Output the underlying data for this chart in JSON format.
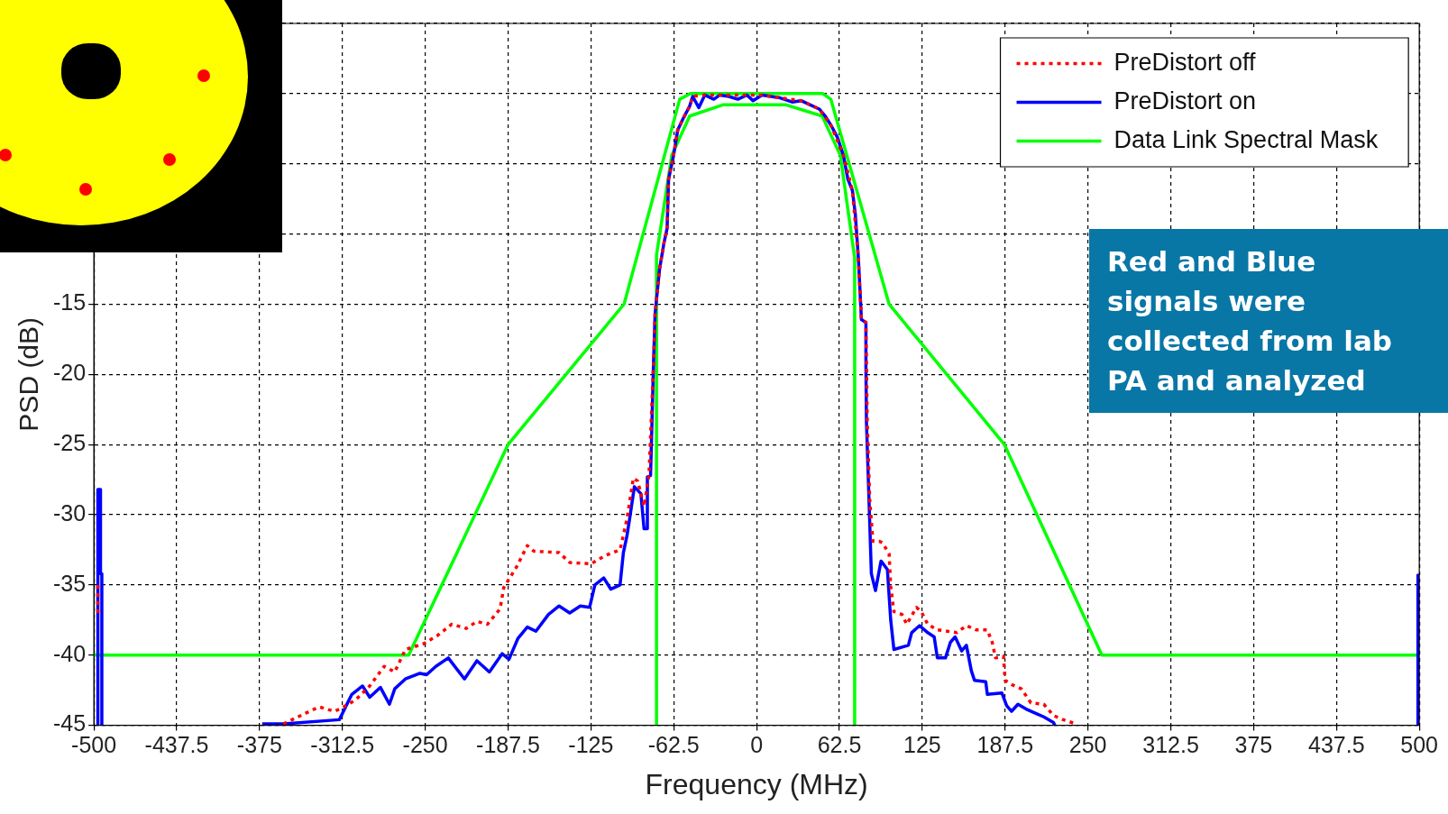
{
  "chart_data": {
    "type": "line",
    "xlabel": "Frequency (MHz)",
    "ylabel": "PSD (dB)",
    "xlim": [
      -500,
      500
    ],
    "xticks": [
      -500,
      -437.5,
      -375,
      -312.5,
      -250,
      -187.5,
      -125,
      -62.5,
      0,
      62.5,
      125,
      187.5,
      250,
      312.5,
      375,
      437.5,
      500
    ],
    "ylim": [
      -45,
      5
    ],
    "yticks": [
      -45,
      -40,
      -35,
      -30,
      -25,
      -20,
      -15,
      {
        "value": -10,
        "label": null
      },
      {
        "value": -5,
        "label": null
      },
      {
        "value": 0,
        "label": null
      },
      {
        "value": 5,
        "label": null
      }
    ],
    "grid": true,
    "legend": "top right",
    "annotations": [
      "Red and Blue signals were collected from lab PA and analyzed"
    ],
    "series": [
      {
        "name": "PreDistort off",
        "color": "#ff0000",
        "line_style": "dotted",
        "x": [
          -357,
          -335,
          -329.6,
          -318.8,
          -313.5,
          -302.6,
          -291.9,
          -281,
          -273,
          -265,
          -251.4,
          -240.7,
          -230,
          -219,
          -211,
          -203,
          -193.5,
          -190.8,
          -181,
          -173,
          -168,
          -149,
          -141,
          -125,
          -114,
          -103,
          -97.8,
          -93,
          -89.7,
          -84.9,
          -81.2,
          -77.6,
          -76.6,
          -73.2,
          -69.8,
          -67.5,
          -66.4,
          -63,
          -59.5,
          -55,
          -50.5,
          -48.2,
          -39.1,
          -27.7,
          -7.3,
          4.1,
          17.7,
          33.6,
          47.3,
          56.4,
          65.5,
          72.3,
          76.8,
          79.1,
          82.5,
          83.5,
          85.4,
          87.8,
          92.7,
          95.1,
          100,
          101.2,
          103.6,
          109.7,
          113.3,
          120.6,
          124.3,
          129.1,
          136.4,
          143.8,
          151.1,
          158.3,
          165.6,
          174.1,
          177.8,
          180.3,
          186.3,
          187.5,
          192.4,
          199.7,
          207,
          216.7,
          224,
          231.3,
          241
        ],
        "values": [
          -44.9,
          -43.9,
          -43.7,
          -44,
          -43.8,
          -43.2,
          -42.2,
          -40.8,
          -41.2,
          -39.6,
          -39.2,
          -38.6,
          -37.8,
          -38.1,
          -37.6,
          -37.8,
          -36.7,
          -35.2,
          -33.7,
          -32.2,
          -32.6,
          -32.7,
          -33.4,
          -33.5,
          -32.9,
          -32.5,
          -30.3,
          -27.4,
          -27.6,
          -29.4,
          -27.2,
          -18.9,
          -15.7,
          -12.5,
          -10.6,
          -9.6,
          -6.1,
          -4.6,
          -2.6,
          -1.7,
          -0.9,
          -0.2,
          -0.1,
          -0.1,
          -0.1,
          -0.1,
          -0.3,
          -0.5,
          -1.1,
          -2.3,
          -4.4,
          -6.9,
          -11.7,
          -16.1,
          -16.3,
          -23.4,
          -29,
          -31.9,
          -31.9,
          -32,
          -32.8,
          -35.1,
          -36.9,
          -37.1,
          -37.8,
          -36.6,
          -36.9,
          -37.8,
          -38.2,
          -38.3,
          -38.4,
          -37.9,
          -38.2,
          -38.2,
          -39.1,
          -40.2,
          -40.1,
          -41.8,
          -42.1,
          -42.4,
          -43.4,
          -43.5,
          -44.3,
          -44.6,
          -44.9
        ]
      },
      {
        "color": "#ff0000",
        "line_style": "dotted",
        "x": [
          -497,
          -497
        ],
        "values": [
          -35,
          -37
        ]
      },
      {
        "name": "PreDistort on",
        "color": "#0000ff",
        "line_style": "solid",
        "x": [
          -373,
          -356.6,
          -314.8,
          -305.4,
          -297.3,
          -291.9,
          -283.8,
          -277,
          -273,
          -265,
          -254,
          -249,
          -242,
          -232.6,
          -220.4,
          -211,
          -201.6,
          -192,
          -186.8,
          -180,
          -173,
          -166.5,
          -157,
          -149,
          -141,
          -133,
          -126,
          -122,
          -115.3,
          -110,
          -103,
          -100.5,
          -97.8,
          -95.8,
          -92.2,
          -87.3,
          -84.9,
          -82.4,
          -82.4,
          -80,
          -78.8,
          -77.7,
          -76.6,
          -73.2,
          -69.8,
          -67.5,
          -66.4,
          -63,
          -59.5,
          -55,
          -50.5,
          -48.2,
          -43.6,
          -39.1,
          -32.3,
          -27.7,
          -20.9,
          -14.1,
          -7.3,
          -2.7,
          4.1,
          10.9,
          17.7,
          26.8,
          33.6,
          40.5,
          47.3,
          51.8,
          56.4,
          60.9,
          65.5,
          68.9,
          72.3,
          74.5,
          76.8,
          79.1,
          82.5,
          82.5,
          82.9,
          84.9,
          86.6,
          89.7,
          93.9,
          98.7,
          101.2,
          103.6,
          114.5,
          117,
          123,
          129.1,
          134,
          136.4,
          142.5,
          146.2,
          149.8,
          154.7,
          158.3,
          162,
          164.4,
          172.9,
          174.1,
          185.1,
          188.7,
          192.4,
          197.2,
          204.5,
          211.8,
          216.7,
          224,
          225
        ],
        "values": [
          -44.9,
          -44.9,
          -44.6,
          -42.8,
          -42.2,
          -43,
          -42.3,
          -43.5,
          -42.4,
          -41.7,
          -41.3,
          -41.4,
          -40.8,
          -40.2,
          -41.7,
          -40.4,
          -41.2,
          -39.9,
          -40.3,
          -38.8,
          -38,
          -38.3,
          -37.1,
          -36.5,
          -37,
          -36.5,
          -36.6,
          -35,
          -34.5,
          -35.3,
          -35,
          -32.7,
          -31.5,
          -30.3,
          -28,
          -28.5,
          -31,
          -31,
          -27.3,
          -27.2,
          -23,
          -19,
          -15.7,
          -12.5,
          -10.6,
          -9.6,
          -6.1,
          -4.6,
          -2.6,
          -1.7,
          -0.9,
          -0.2,
          -1,
          -0.1,
          -0.4,
          -0.1,
          -0.2,
          -0.4,
          -0.1,
          -0.5,
          -0.1,
          -0.2,
          -0.3,
          -0.6,
          -0.5,
          -0.8,
          -1.1,
          -1.6,
          -2.3,
          -3.1,
          -4.4,
          -6.1,
          -6.9,
          -8.6,
          -11.7,
          -16.1,
          -16.3,
          -19.4,
          -23.4,
          -29.2,
          -34.2,
          -35.4,
          -33.3,
          -33.9,
          -37.5,
          -39.6,
          -39.3,
          -38.4,
          -37.9,
          -38.4,
          -38.7,
          -40.2,
          -40.2,
          -39.1,
          -38.7,
          -39.7,
          -39.3,
          -41.1,
          -41.8,
          -41.9,
          -42.8,
          -42.7,
          -43.6,
          -44,
          -43.5,
          -43.9,
          -44.2,
          -44.4,
          -44.8,
          -45
        ]
      },
      {
        "color": "#0000ff",
        "line_style": "solid",
        "x": [
          -497,
          -497,
          -495,
          -495,
          -494,
          -494
        ],
        "values": [
          -45,
          -28.2,
          -28.2,
          -34.2,
          -34.2,
          -45
        ]
      },
      {
        "color": "#0000ff",
        "line_style": "solid",
        "x": [
          499,
          499
        ],
        "values": [
          -34.3,
          -45
        ]
      },
      {
        "name": "Data Link Spectral Mask",
        "color": "#00ff00",
        "line_style": "solid",
        "x": [
          -500,
          -262.5,
          -187.5,
          -100,
          -58,
          -50,
          50,
          56,
          100,
          187,
          260.5,
          500
        ],
        "values": [
          -40,
          -40,
          -25,
          -15,
          -0.4,
          0,
          0,
          -0.4,
          -15,
          -25,
          -40,
          -40
        ]
      },
      {
        "color": "#00ff00",
        "line_style": "solid",
        "x": [
          -75.5,
          -75.5,
          -64,
          -50.5,
          -25.5,
          22.3,
          49.5,
          63.2,
          74,
          74
        ],
        "values": [
          -45,
          -11.5,
          -4.4,
          -1.6,
          -0.8,
          -0.8,
          -1.6,
          -4.4,
          -11.7,
          -45
        ]
      }
    ]
  }
}
